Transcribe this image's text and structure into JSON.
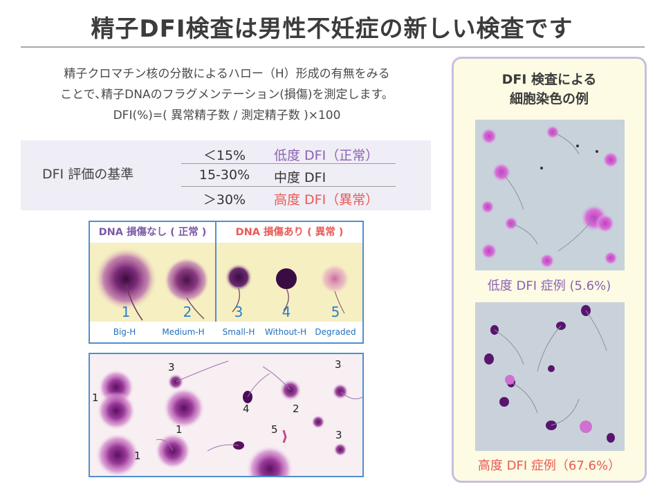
{
  "title": "精子DFI検査は男性不妊症の新しい検査です",
  "description": {
    "line1": "精子クロマチン核の分散によるハロー（H）形成の有無をみる",
    "line2": "ことで､精子DNAのフラグメンテーション(損傷)を測定します。",
    "formula": "DFI(%)=( 異常精子数 / 測定精子数 )×100"
  },
  "criteria": {
    "label": "DFI 評価の基準",
    "rows": [
      {
        "range": "＜15%",
        "level": "低度 DFI（正常）"
      },
      {
        "range": "15-30%",
        "level": "中度 DFI"
      },
      {
        "range": "＞30%",
        "level": "高度 DFI（異常）"
      }
    ]
  },
  "halo_panel": {
    "normal_label": "DNA 損傷なし ( 正常 )",
    "abnormal_label": "DNA 損傷あり ( 異常 )",
    "numbers": [
      "1",
      "2",
      "3",
      "4",
      "5"
    ],
    "captions": [
      "Big-H",
      "Medium-H",
      "Small-H",
      "Without-H",
      "Degraded"
    ]
  },
  "sample_panel": {
    "numbers": [
      "1",
      "3",
      "1",
      "1",
      "4",
      "5",
      "2",
      "3",
      "3"
    ]
  },
  "side_panel": {
    "title_line1": "DFI 検査による",
    "title_line2": "細胞染色の例",
    "low_caption": "低度 DFI 症例 (5.6%)",
    "high_caption": "高度 DFI 症例（67.6%）"
  },
  "colors": {
    "low": "#8a62b4",
    "high": "#e85a55",
    "frame": "#4e8fd0",
    "panel_border": "#c8bedd"
  }
}
